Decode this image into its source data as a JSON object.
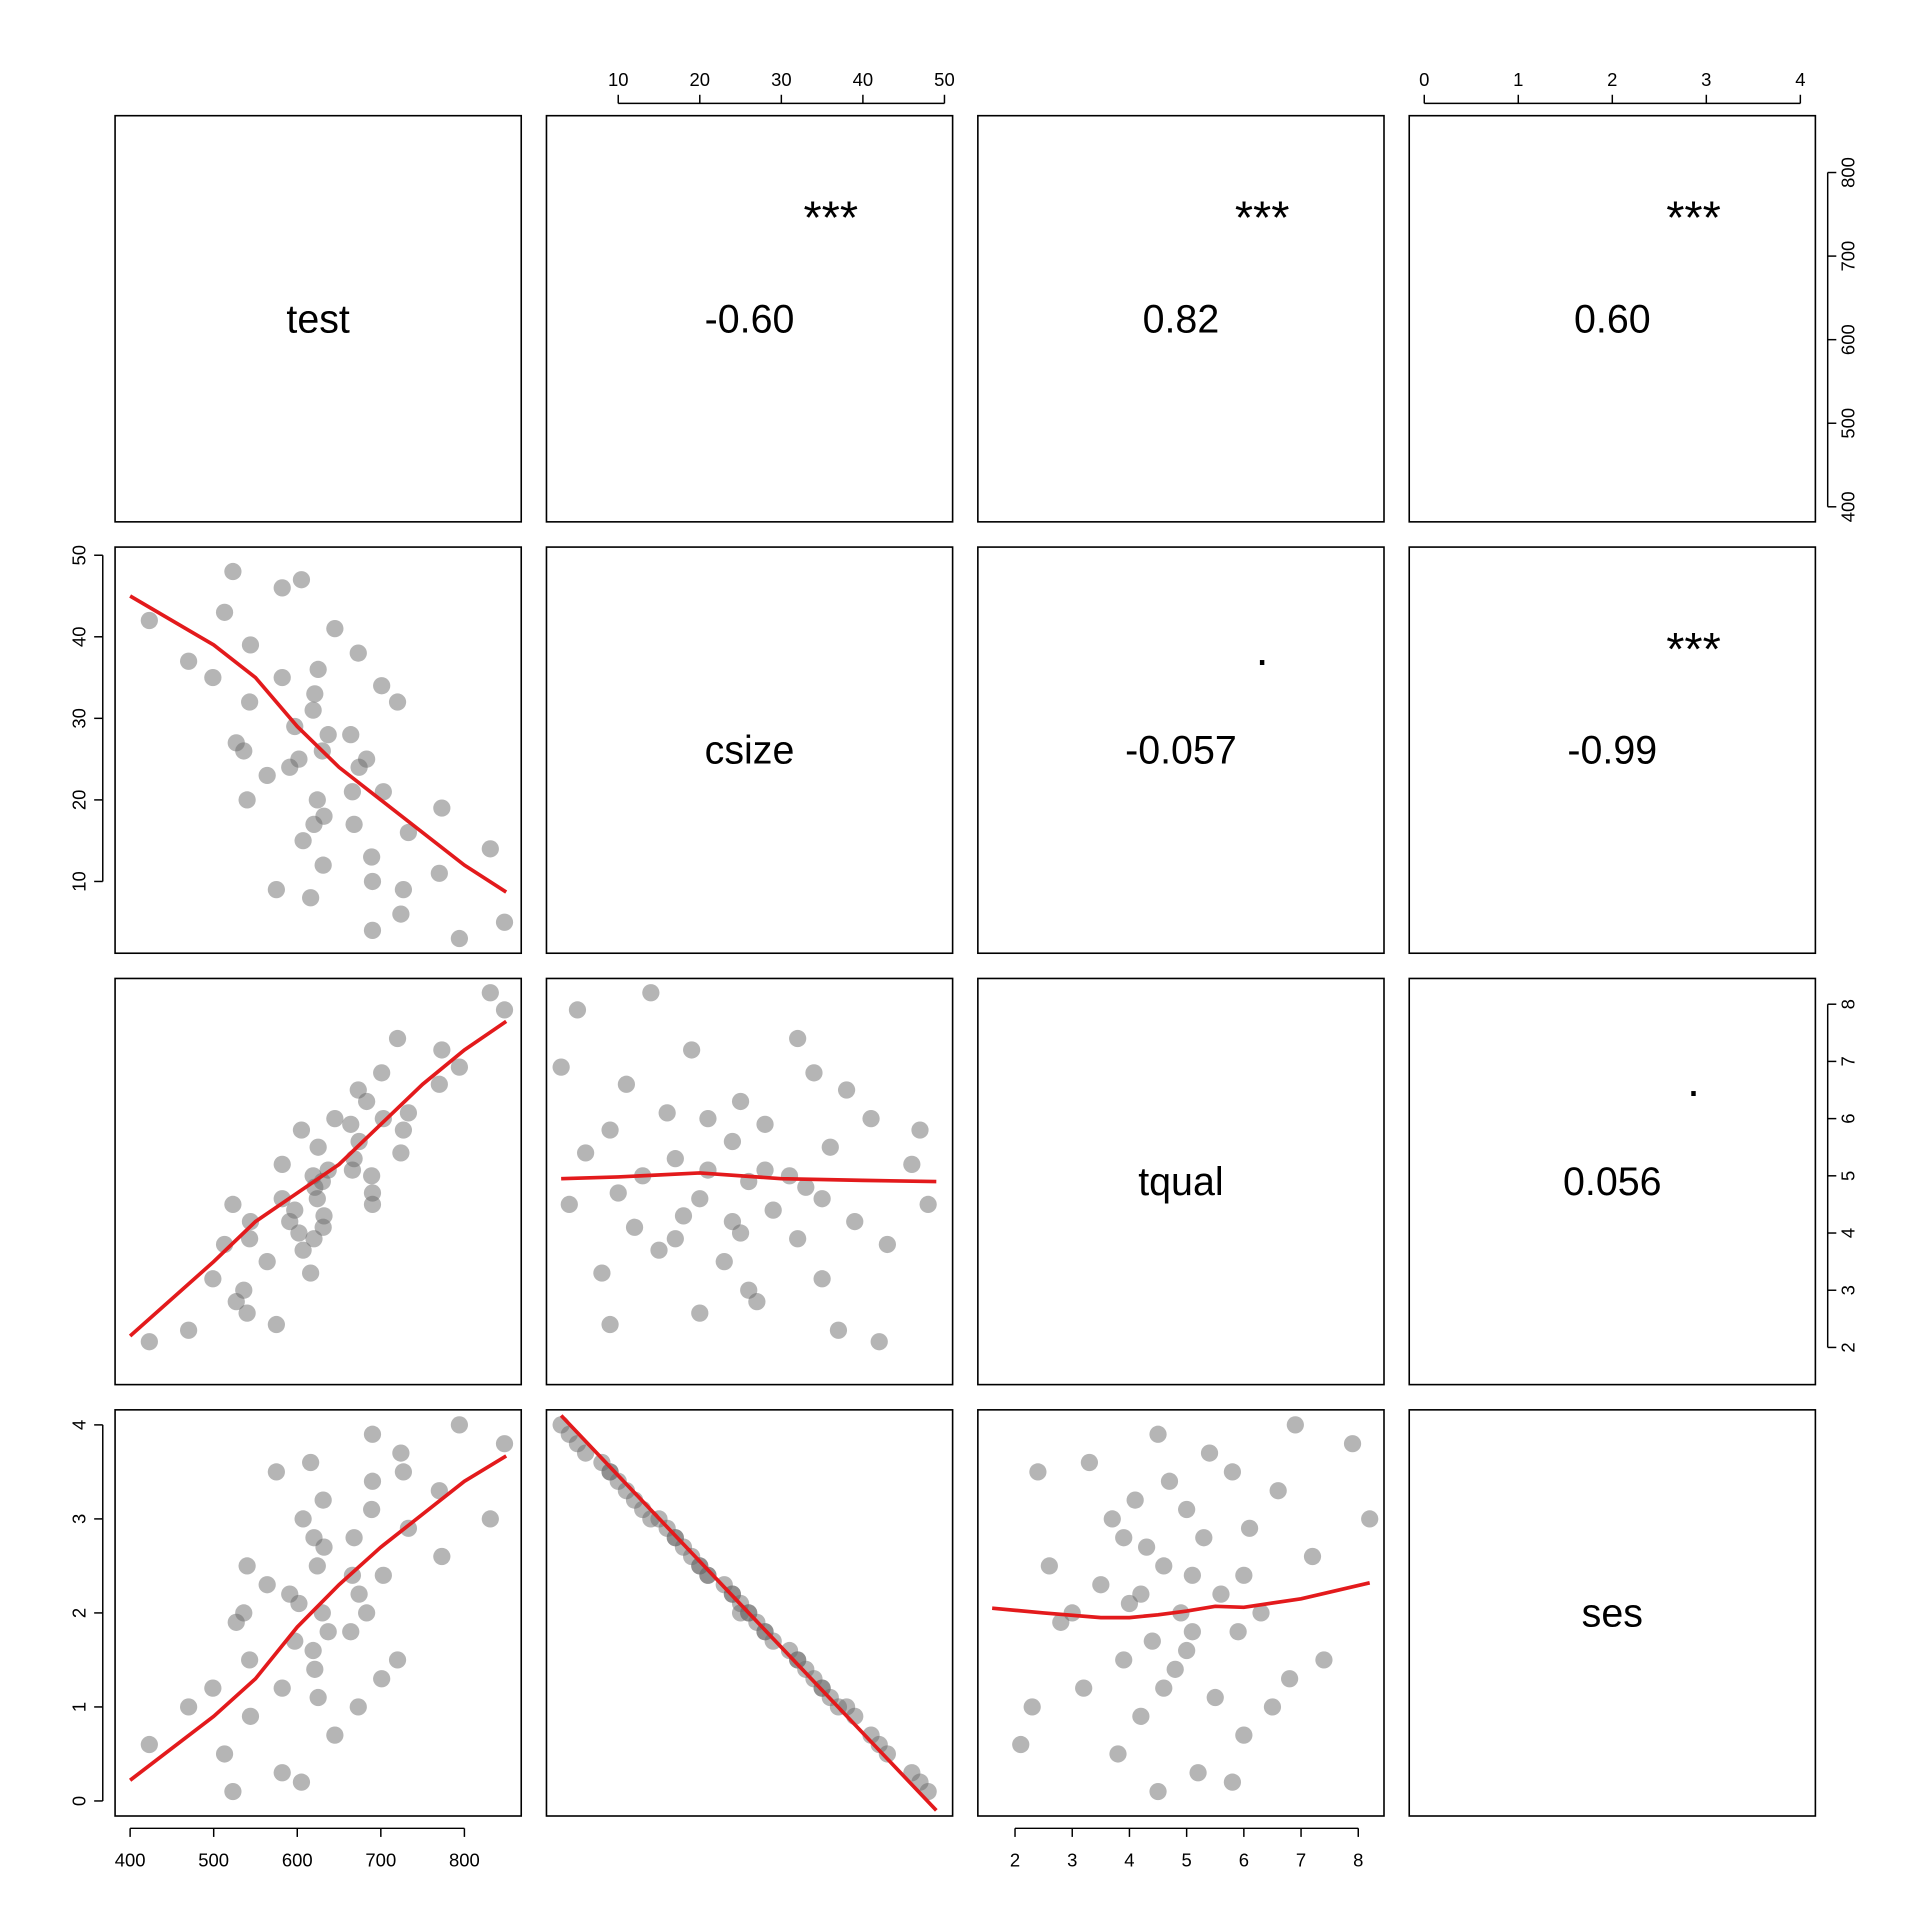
{
  "chart_data": {
    "type": "pairs",
    "point_color": "#6b6b6b",
    "smooth_color": "#e31a1c",
    "significance_color": "#d33f62",
    "variables": [
      {
        "name": "test",
        "lim": [
          382,
          868
        ],
        "ticks": [
          400,
          500,
          600,
          700,
          800
        ],
        "values": [
          523,
          582,
          513,
          645,
          544,
          470,
          625,
          499,
          701,
          621,
          543,
          619,
          597,
          664,
          527,
          630,
          683,
          602,
          674,
          564,
          666,
          624,
          773,
          632,
          668,
          733,
          607,
          689,
          631,
          770,
          690,
          727,
          616,
          724,
          848,
          690,
          794,
          605,
          423,
          673,
          720,
          536,
          540,
          831,
          575,
          582,
          591,
          620,
          637,
          703
        ]
      },
      {
        "name": "csize",
        "lim": [
          1.2,
          51
        ],
        "ticks": [
          10,
          20,
          30,
          40,
          50
        ],
        "values": [
          48,
          46,
          43,
          41,
          39,
          37,
          36,
          35,
          34,
          33,
          32,
          31,
          29,
          28,
          27,
          26,
          25,
          25,
          24,
          23,
          21,
          20,
          19,
          18,
          17,
          16,
          15,
          13,
          12,
          11,
          10,
          9,
          8,
          6,
          5,
          4,
          3,
          47,
          42,
          38,
          32,
          26,
          20,
          14,
          9,
          35,
          24,
          17,
          28,
          21
        ]
      },
      {
        "name": "tqual",
        "lim": [
          1.35,
          8.45
        ],
        "ticks": [
          2,
          3,
          4,
          5,
          6,
          7,
          8
        ],
        "values": [
          4.5,
          5.2,
          3.8,
          6.0,
          4.2,
          2.3,
          5.5,
          3.2,
          6.8,
          4.8,
          3.9,
          5.0,
          4.4,
          5.9,
          2.8,
          4.9,
          6.3,
          4.0,
          5.6,
          3.5,
          5.1,
          4.6,
          7.2,
          4.3,
          5.3,
          6.1,
          3.7,
          5.0,
          4.1,
          6.6,
          4.7,
          5.8,
          3.3,
          5.4,
          7.9,
          4.5,
          6.9,
          5.8,
          2.1,
          6.5,
          7.4,
          3.0,
          2.6,
          8.2,
          2.4,
          4.6,
          4.2,
          3.9,
          5.1,
          6.0
        ]
      },
      {
        "name": "ses",
        "lim": [
          -0.16,
          4.16
        ],
        "ticks": [
          0,
          1,
          2,
          3,
          4
        ],
        "values": [
          0.1,
          0.3,
          0.5,
          0.7,
          0.9,
          1.0,
          1.1,
          1.2,
          1.3,
          1.4,
          1.5,
          1.6,
          1.7,
          1.8,
          1.9,
          2.0,
          2.0,
          2.1,
          2.2,
          2.3,
          2.4,
          2.5,
          2.6,
          2.7,
          2.8,
          2.9,
          3.0,
          3.1,
          3.2,
          3.3,
          3.4,
          3.5,
          3.6,
          3.7,
          3.8,
          3.9,
          4.0,
          0.2,
          0.6,
          1.0,
          1.5,
          2.0,
          2.5,
          3.0,
          3.5,
          1.2,
          2.2,
          2.8,
          1.8,
          2.4
        ]
      }
    ],
    "correlations": {
      "values": [
        -0.6,
        0.82,
        0.6,
        -0.057,
        -0.99,
        0.056
      ],
      "value_labels": [
        "-0.60",
        "0.82",
        "0.60",
        "-0.057",
        "-0.99",
        "0.056"
      ],
      "significance": [
        "***",
        "***",
        "***",
        ".",
        "***",
        "."
      ]
    },
    "smooths": [
      {
        "x": [
          400,
          500,
          550,
          600,
          650,
          700,
          750,
          800,
          850
        ],
        "y": [
          45,
          39,
          35,
          29,
          24,
          20,
          16,
          12,
          8.7
        ]
      },
      {
        "x": [
          400,
          500,
          550,
          600,
          650,
          700,
          750,
          800,
          850
        ],
        "y": [
          2.2,
          3.5,
          4.2,
          4.7,
          5.2,
          5.9,
          6.6,
          7.2,
          7.7
        ]
      },
      {
        "x": [
          3,
          10,
          20,
          30,
          40,
          49
        ],
        "y": [
          4.95,
          4.98,
          5.05,
          4.95,
          4.92,
          4.9
        ]
      },
      {
        "x": [
          400,
          500,
          550,
          600,
          650,
          700,
          750,
          800,
          850
        ],
        "y": [
          0.22,
          0.9,
          1.3,
          1.85,
          2.3,
          2.7,
          3.05,
          3.4,
          3.67
        ]
      },
      {
        "x": [
          3,
          26,
          49
        ],
        "y": [
          4.1,
          2.0,
          -0.1
        ]
      },
      {
        "x": [
          1.6,
          2.5,
          3.5,
          4,
          4.5,
          5,
          5.5,
          6,
          7,
          8.2
        ],
        "y": [
          2.05,
          2.0,
          1.95,
          1.95,
          1.98,
          2.02,
          2.07,
          2.06,
          2.15,
          2.32
        ]
      }
    ]
  }
}
